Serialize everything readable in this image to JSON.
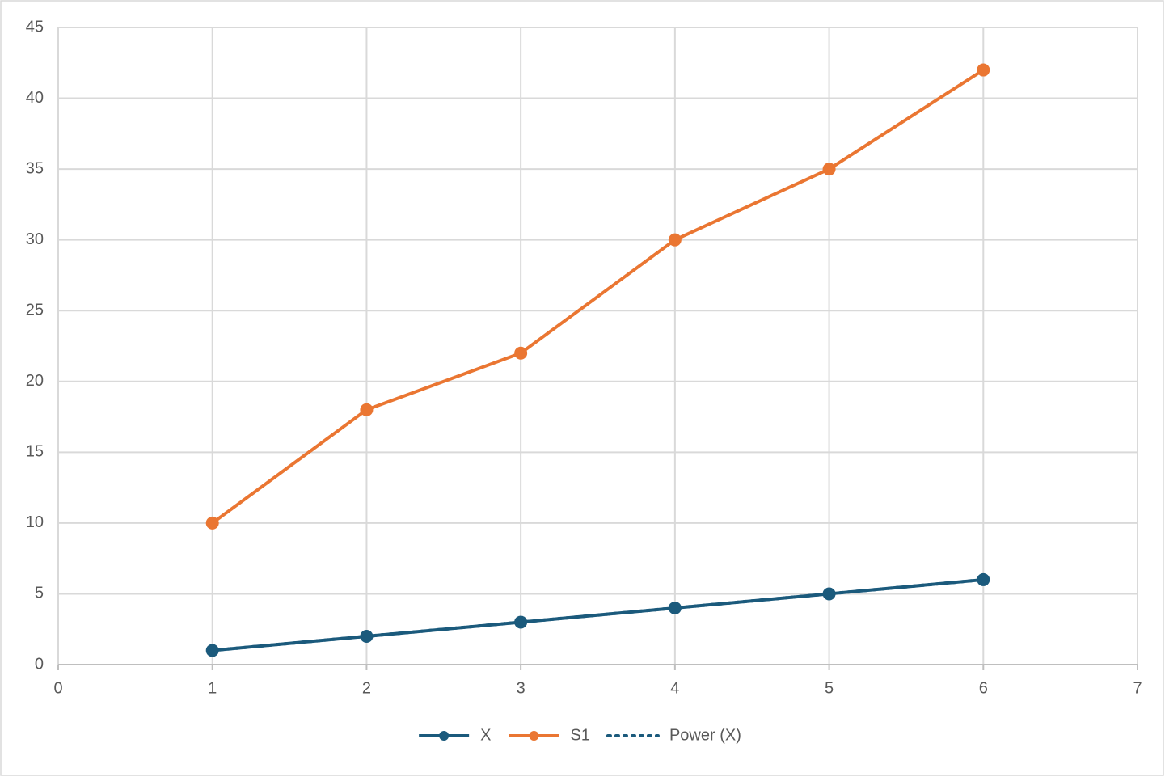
{
  "chart_data": {
    "type": "scatter",
    "x": [
      1,
      2,
      3,
      4,
      5,
      6
    ],
    "series": [
      {
        "name": "X",
        "color": "#1b5a7c",
        "values": [
          1,
          2,
          3,
          4,
          5,
          6
        ],
        "markers": true,
        "style": "solid"
      },
      {
        "name": "S1",
        "color": "#ea7632",
        "values": [
          10,
          18,
          22,
          30,
          35,
          42
        ],
        "markers": true,
        "style": "solid"
      },
      {
        "name": "Power (X)",
        "color": "#1b5a7c",
        "values": [
          1,
          2,
          3,
          4,
          5,
          6
        ],
        "markers": false,
        "style": "dotted"
      }
    ],
    "xlim": [
      0,
      7
    ],
    "xticks": [
      0,
      1,
      2,
      3,
      4,
      5,
      6,
      7
    ],
    "ylim": [
      0,
      45
    ],
    "yticks": [
      0,
      5,
      10,
      15,
      20,
      25,
      30,
      35,
      40,
      45
    ],
    "grid": true,
    "legend": "bottom"
  }
}
